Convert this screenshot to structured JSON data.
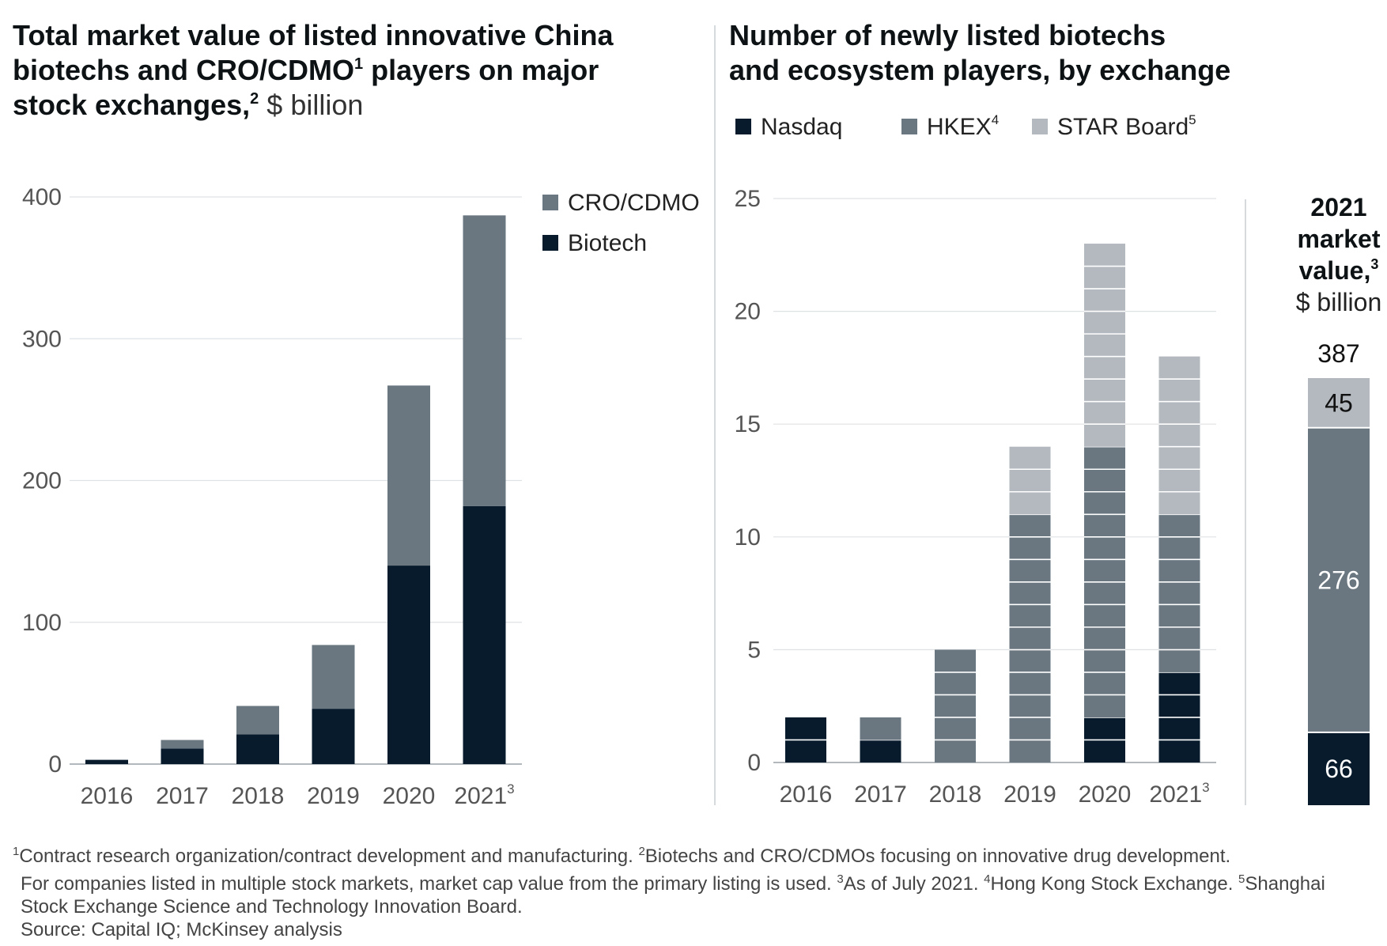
{
  "colors": {
    "biotech": "#071b2c",
    "cro": "#6a7780",
    "nasdaq": "#071b2c",
    "hkex": "#6a7780",
    "star": "#b3b9bf",
    "gridline": "#dfe2e4",
    "divider": "#c9cdd0",
    "axis": "#9aa1a7",
    "tick_text": "#555555",
    "title_text": "#0d1214"
  },
  "chart_data": [
    {
      "type": "bar",
      "stacked": true,
      "title_bold_lines": [
        "Total market value of listed innovative China",
        "biotechs and CRO/CDMO",
        "players on major",
        "stock exchanges,"
      ],
      "title_sup_1": "1",
      "title_sup_2": "2",
      "title_unit": "$ billion",
      "categories": [
        "2016",
        "2017",
        "2018",
        "2019",
        "2020",
        "2021"
      ],
      "category_superscripts": [
        "",
        "",
        "",
        "",
        "",
        "3"
      ],
      "series": [
        {
          "name": "Biotech",
          "values": [
            3,
            11,
            21,
            39,
            140,
            182
          ]
        },
        {
          "name": "CRO/CDMO",
          "values": [
            0,
            6,
            20,
            45,
            127,
            205
          ]
        }
      ],
      "ylim": [
        0,
        400
      ],
      "yticks": [
        "0",
        "100",
        "200",
        "300",
        "400"
      ],
      "grid": true,
      "legend_position": "right",
      "legend_order": [
        "CRO/CDMO",
        "Biotech"
      ]
    },
    {
      "type": "bar",
      "stacked": true,
      "title_lines": [
        "Number of newly listed biotechs",
        "and ecosystem players, by exchange"
      ],
      "categories": [
        "2016",
        "2017",
        "2018",
        "2019",
        "2020",
        "2021"
      ],
      "category_superscripts": [
        "",
        "",
        "",
        "",
        "",
        "3"
      ],
      "series": [
        {
          "name": "Nasdaq",
          "sup": "",
          "values": [
            2,
            1,
            0,
            0,
            2,
            4
          ]
        },
        {
          "name": "HKEX",
          "sup": "4",
          "values": [
            0,
            1,
            5,
            11,
            12,
            7
          ]
        },
        {
          "name": "STAR Board",
          "sup": "5",
          "values": [
            0,
            0,
            0,
            3,
            9,
            7
          ]
        }
      ],
      "ylim": [
        0,
        25
      ],
      "yticks": [
        "0",
        "5",
        "10",
        "15",
        "20",
        "25"
      ],
      "grid": true,
      "legend_position": "top"
    },
    {
      "type": "bar",
      "stacked": true,
      "title_lines": [
        "2021",
        "market",
        "value,"
      ],
      "title_sup": "3",
      "title_unit": "$ billion",
      "total_label": "387",
      "segments": [
        {
          "series": "Nasdaq",
          "value": 66,
          "label": "66"
        },
        {
          "series": "HKEX",
          "value": 276,
          "label": "276"
        },
        {
          "series": "STAR Board",
          "value": 45,
          "label": "45"
        }
      ]
    }
  ],
  "footnotes": {
    "line1": "Contract research organization/contract development and manufacturing.  ",
    "line1_sup1": "1",
    "line1_sup2": "2",
    "line1_after": "Biotechs and CRO/CDMOs focusing on innovative drug development.",
    "line2": "For companies listed in multiple stock markets, market cap value from the primary listing is used.  ",
    "line2_sup3": "3",
    "line2_mid": "As of July 2021.  ",
    "line2_sup4": "4",
    "line2_mid2": "Hong Kong Stock Exchange.  ",
    "line2_sup5": "5",
    "line2_end": "Shanghai",
    "line3": "Stock Exchange Science and Technology Innovation Board.",
    "source": "Source: Capital IQ; McKinsey analysis"
  }
}
